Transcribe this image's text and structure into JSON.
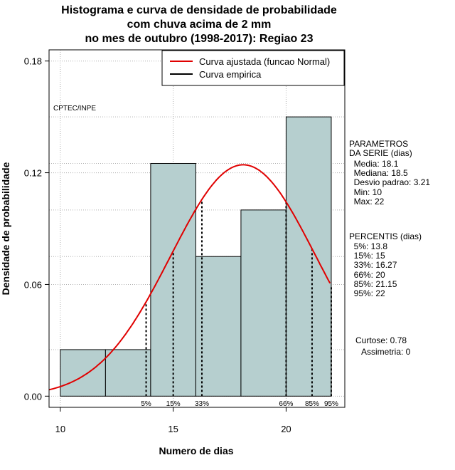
{
  "chart_data": {
    "type": "bar",
    "title_lines": [
      "Histograma e curva de densidade de probabilidade",
      "com chuva acima de 2 mm",
      "no mes de outubro (1998-2017): Regiao 23"
    ],
    "xlabel": "Numero de dias",
    "ylabel": "Densidade de probabilidade",
    "xlim": [
      9.5,
      22.6
    ],
    "ylim": [
      -0.006,
      0.186
    ],
    "x_ticks": [
      10,
      15,
      20
    ],
    "y_ticks": [
      0.0,
      0.06,
      0.12,
      0.18
    ],
    "y_tick_labels": [
      "0.00",
      "0.06",
      "0.12",
      "0.18"
    ],
    "grid": true,
    "bins": [
      {
        "x0": 10,
        "x1": 12,
        "density": 0.025
      },
      {
        "x0": 12,
        "x1": 14,
        "density": 0.025
      },
      {
        "x0": 14,
        "x1": 16,
        "density": 0.125
      },
      {
        "x0": 16,
        "x1": 18,
        "density": 0.075
      },
      {
        "x0": 18,
        "x1": 20,
        "density": 0.1
      },
      {
        "x0": 20,
        "x1": 22,
        "density": 0.15
      }
    ],
    "bar_color": "#b6cfcf",
    "normal_curve": {
      "mean": 18.1,
      "sd": 3.21,
      "color": "#e00000"
    },
    "percentiles": [
      {
        "label": "5%",
        "x": 13.8
      },
      {
        "label": "15%",
        "x": 15
      },
      {
        "label": "33%",
        "x": 16.27
      },
      {
        "label": "66%",
        "x": 20
      },
      {
        "label": "85%",
        "x": 21.15
      },
      {
        "label": "95%",
        "x": 22
      }
    ],
    "legend": {
      "position": "top-right",
      "entries": [
        {
          "label": "Curva ajustada (funcao Normal)",
          "color": "#e00000"
        },
        {
          "label": "Curva empirica",
          "color": "#000000"
        }
      ]
    },
    "annotation": "CPTEC/INPE"
  },
  "side_panel": {
    "params_title": "PARAMETROS\nDA SERIE (dias)",
    "params_body": "  Media: 18.1\n  Mediana: 18.5\n  Desvio padrao: 3.21\n  Min: 10\n  Max: 22",
    "percentis_title": "PERCENTIS (dias)",
    "percentis_body": "  5%: 13.8\n  15%: 15\n  33%: 16.27\n  66%: 20\n  85%: 21.15\n  95%: 22",
    "curtose": "Curtose: 0.78",
    "assimetria": "Assimetria: 0"
  }
}
